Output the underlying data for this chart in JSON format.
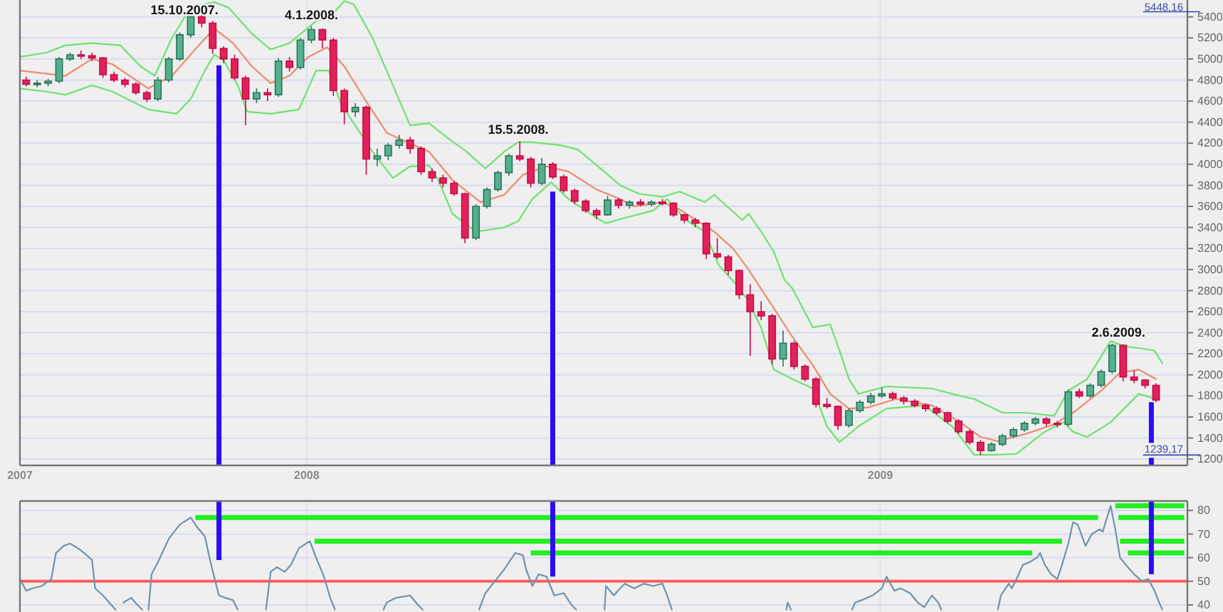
{
  "chart_data": [
    {
      "type": "candlestick",
      "x": [
        "2007-07-06",
        "2007-07-13",
        "2007-07-20",
        "2007-07-27",
        "2007-08-03",
        "2007-08-10",
        "2007-08-17",
        "2007-08-24",
        "2007-08-31",
        "2007-09-07",
        "2007-09-14",
        "2007-09-21",
        "2007-09-28",
        "2007-10-05",
        "2007-10-12",
        "2007-10-19",
        "2007-10-26",
        "2007-11-02",
        "2007-11-09",
        "2007-11-16",
        "2007-11-23",
        "2007-11-30",
        "2007-12-07",
        "2007-12-14",
        "2007-12-21",
        "2007-12-28",
        "2008-01-04",
        "2008-01-11",
        "2008-01-18",
        "2008-01-25",
        "2008-02-01",
        "2008-02-08",
        "2008-02-15",
        "2008-02-22",
        "2008-02-29",
        "2008-03-07",
        "2008-03-14",
        "2008-03-21",
        "2008-03-28",
        "2008-04-04",
        "2008-04-11",
        "2008-04-18",
        "2008-04-25",
        "2008-05-02",
        "2008-05-09",
        "2008-05-16",
        "2008-05-23",
        "2008-05-30",
        "2008-06-06",
        "2008-06-13",
        "2008-06-20",
        "2008-06-27",
        "2008-07-04",
        "2008-07-11",
        "2008-07-18",
        "2008-07-25",
        "2008-08-01",
        "2008-08-08",
        "2008-08-15",
        "2008-08-22",
        "2008-08-29",
        "2008-09-05",
        "2008-09-12",
        "2008-09-19",
        "2008-09-26",
        "2008-10-03",
        "2008-10-10",
        "2008-10-17",
        "2008-10-24",
        "2008-10-31",
        "2008-11-07",
        "2008-11-14",
        "2008-11-21",
        "2008-11-28",
        "2008-12-05",
        "2008-12-12",
        "2008-12-19",
        "2008-12-26",
        "2009-01-02",
        "2009-01-09",
        "2009-01-16",
        "2009-01-23",
        "2009-01-30",
        "2009-02-06",
        "2009-02-13",
        "2009-02-20",
        "2009-02-27",
        "2009-03-06",
        "2009-03-13",
        "2009-03-20",
        "2009-03-27",
        "2009-04-03",
        "2009-04-10",
        "2009-04-17",
        "2009-04-24",
        "2009-05-01",
        "2009-05-08",
        "2009-05-15",
        "2009-05-22",
        "2009-05-29",
        "2009-06-05",
        "2009-06-12",
        "2009-06-19",
        "2009-06-26"
      ],
      "ohlc": [
        [
          4800,
          4830,
          4740,
          4760
        ],
        [
          4760,
          4800,
          4730,
          4770
        ],
        [
          4770,
          4810,
          4740,
          4790
        ],
        [
          4790,
          5020,
          4770,
          5000
        ],
        [
          5000,
          5060,
          4980,
          5040
        ],
        [
          5040,
          5080,
          5000,
          5030
        ],
        [
          5030,
          5060,
          4980,
          5010
        ],
        [
          5010,
          5020,
          4820,
          4850
        ],
        [
          4850,
          4880,
          4780,
          4800
        ],
        [
          4800,
          4820,
          4730,
          4760
        ],
        [
          4760,
          4780,
          4660,
          4680
        ],
        [
          4680,
          4700,
          4590,
          4620
        ],
        [
          4620,
          4830,
          4600,
          4800
        ],
        [
          4800,
          5020,
          4780,
          5000
        ],
        [
          5000,
          5250,
          4980,
          5230
        ],
        [
          5230,
          5448.16,
          5200,
          5400
        ],
        [
          5400,
          5420,
          5300,
          5340
        ],
        [
          5340,
          5360,
          5050,
          5100
        ],
        [
          5100,
          5120,
          4960,
          5000
        ],
        [
          5000,
          5040,
          4800,
          4820
        ],
        [
          4820,
          4840,
          4370,
          4620
        ],
        [
          4620,
          4720,
          4580,
          4680
        ],
        [
          4680,
          4720,
          4600,
          4660
        ],
        [
          4660,
          5010,
          4640,
          4980
        ],
        [
          4980,
          5020,
          4880,
          4920
        ],
        [
          4920,
          5200,
          4900,
          5180
        ],
        [
          5180,
          5310,
          5150,
          5280
        ],
        [
          5280,
          5290,
          5100,
          5180
        ],
        [
          5180,
          5200,
          4650,
          4700
        ],
        [
          4700,
          4720,
          4380,
          4500
        ],
        [
          4500,
          4580,
          4450,
          4540
        ],
        [
          4540,
          4560,
          3900,
          4050
        ],
        [
          4050,
          4150,
          3980,
          4080
        ],
        [
          4080,
          4200,
          4040,
          4180
        ],
        [
          4180,
          4280,
          4150,
          4230
        ],
        [
          4230,
          4260,
          4100,
          4150
        ],
        [
          4150,
          4170,
          3900,
          3930
        ],
        [
          3930,
          3960,
          3830,
          3870
        ],
        [
          3870,
          3900,
          3780,
          3820
        ],
        [
          3820,
          3840,
          3700,
          3720
        ],
        [
          3720,
          3730,
          3250,
          3300
        ],
        [
          3300,
          3620,
          3280,
          3600
        ],
        [
          3600,
          3780,
          3580,
          3760
        ],
        [
          3760,
          3940,
          3740,
          3920
        ],
        [
          3920,
          4100,
          3890,
          4080
        ],
        [
          4080,
          4220,
          4030,
          4050
        ],
        [
          4050,
          4070,
          3780,
          3820
        ],
        [
          3820,
          4060,
          3800,
          4000
        ],
        [
          4000,
          4020,
          3860,
          3880
        ],
        [
          3880,
          3900,
          3730,
          3750
        ],
        [
          3750,
          3770,
          3620,
          3650
        ],
        [
          3650,
          3670,
          3540,
          3560
        ],
        [
          3560,
          3580,
          3480,
          3520
        ],
        [
          3520,
          3700,
          3510,
          3660
        ],
        [
          3660,
          3680,
          3580,
          3610
        ],
        [
          3610,
          3660,
          3580,
          3640
        ],
        [
          3640,
          3670,
          3600,
          3620
        ],
        [
          3620,
          3660,
          3600,
          3640
        ],
        [
          3640,
          3670,
          3610,
          3630
        ],
        [
          3630,
          3640,
          3500,
          3520
        ],
        [
          3520,
          3530,
          3440,
          3470
        ],
        [
          3470,
          3490,
          3400,
          3440
        ],
        [
          3440,
          3450,
          3100,
          3150
        ],
        [
          3150,
          3300,
          3100,
          3120
        ],
        [
          3120,
          3140,
          2950,
          2990
        ],
        [
          2990,
          3000,
          2720,
          2760
        ],
        [
          2760,
          2860,
          2180,
          2600
        ],
        [
          2600,
          2700,
          2520,
          2560
        ],
        [
          2560,
          2580,
          2100,
          2150
        ],
        [
          2150,
          2420,
          2080,
          2300
        ],
        [
          2300,
          2320,
          2050,
          2080
        ],
        [
          2080,
          2100,
          1940,
          1960
        ],
        [
          1960,
          1980,
          1690,
          1720
        ],
        [
          1720,
          1780,
          1680,
          1700
        ],
        [
          1700,
          1710,
          1480,
          1520
        ],
        [
          1520,
          1680,
          1500,
          1660
        ],
        [
          1660,
          1760,
          1640,
          1740
        ],
        [
          1740,
          1830,
          1720,
          1800
        ],
        [
          1800,
          1880,
          1780,
          1820
        ],
        [
          1820,
          1840,
          1760,
          1780
        ],
        [
          1780,
          1800,
          1720,
          1750
        ],
        [
          1750,
          1770,
          1690,
          1710
        ],
        [
          1710,
          1730,
          1650,
          1680
        ],
        [
          1680,
          1700,
          1620,
          1640
        ],
        [
          1640,
          1650,
          1540,
          1560
        ],
        [
          1560,
          1580,
          1440,
          1460
        ],
        [
          1460,
          1480,
          1340,
          1360
        ],
        [
          1360,
          1380,
          1239.17,
          1280
        ],
        [
          1280,
          1360,
          1270,
          1340
        ],
        [
          1340,
          1440,
          1320,
          1420
        ],
        [
          1420,
          1500,
          1400,
          1480
        ],
        [
          1480,
          1560,
          1460,
          1540
        ],
        [
          1540,
          1600,
          1520,
          1580
        ],
        [
          1580,
          1600,
          1510,
          1540
        ],
        [
          1540,
          1560,
          1500,
          1530
        ],
        [
          1530,
          1860,
          1510,
          1840
        ],
        [
          1840,
          1870,
          1780,
          1800
        ],
        [
          1800,
          1920,
          1780,
          1900
        ],
        [
          1900,
          2050,
          1880,
          2030
        ],
        [
          2030,
          2295,
          2010,
          2280
        ],
        [
          2280,
          2290,
          1940,
          1980
        ],
        [
          1980,
          2040,
          1920,
          1950
        ],
        [
          1950,
          1960,
          1870,
          1900
        ],
        [
          1900,
          1920,
          1740,
          1760
        ]
      ],
      "series": [
        {
          "type": "line",
          "color": "#6de36d",
          "x": [
            "2007-07-02",
            "2007-07-19",
            "2007-07-31",
            "2007-08-17",
            "2007-09-04",
            "2007-09-17",
            "2007-09-26",
            "2007-10-07",
            "2007-10-19",
            "2007-11-03",
            "2007-11-12",
            "2007-11-27",
            "2007-12-09",
            "2007-12-21",
            "2008-01-07",
            "2008-01-16",
            "2008-01-25",
            "2008-01-31",
            "2008-02-12",
            "2008-02-25",
            "2008-03-07",
            "2008-03-19",
            "2008-03-31",
            "2008-04-12",
            "2008-04-24",
            "2008-05-06",
            "2008-05-15",
            "2008-05-24",
            "2008-06-11",
            "2008-06-22",
            "2008-07-08",
            "2008-07-19",
            "2008-07-31",
            "2008-08-15",
            "2008-08-26",
            "2008-09-11",
            "2008-09-17",
            "2008-10-05",
            "2008-10-09",
            "2008-10-17",
            "2008-10-25",
            "2008-11-01",
            "2008-11-06",
            "2008-11-19",
            "2008-11-30",
            "2008-12-06",
            "2008-12-12",
            "2008-12-18",
            "2009-01-05",
            "2009-02-03",
            "2009-02-21",
            "2009-03-02",
            "2009-03-20",
            "2009-04-04",
            "2009-04-22",
            "2009-05-01",
            "2009-05-13",
            "2009-05-28",
            "2009-06-06",
            "2009-06-17",
            "2009-06-25",
            "2009-06-30"
          ],
          "values": [
            5020,
            5060,
            5130,
            5150,
            5130,
            4930,
            4840,
            5200,
            5490,
            5540,
            5490,
            5240,
            5090,
            5150,
            5360,
            5400,
            5550,
            5520,
            5200,
            4750,
            4370,
            4390,
            4250,
            4120,
            3960,
            4120,
            4210,
            4210,
            4180,
            4140,
            3940,
            3800,
            3720,
            3690,
            3740,
            3640,
            3710,
            3470,
            3530,
            3360,
            3170,
            2900,
            2820,
            2450,
            2480,
            2230,
            1960,
            1820,
            1890,
            1870,
            1800,
            1770,
            1640,
            1640,
            1610,
            1850,
            1960,
            2320,
            2270,
            2250,
            2230,
            2110
          ]
        },
        {
          "type": "line",
          "color": "#ee8a6c",
          "x": [
            "2007-07-02",
            "2007-07-31",
            "2007-08-17",
            "2007-08-30",
            "2007-09-22",
            "2007-10-07",
            "2007-10-23",
            "2007-11-03",
            "2007-11-15",
            "2007-11-27",
            "2007-12-09",
            "2007-12-21",
            "2008-01-02",
            "2008-01-14",
            "2008-01-25",
            "2008-02-07",
            "2008-02-21",
            "2008-03-05",
            "2008-03-19",
            "2008-04-03",
            "2008-04-21",
            "2008-05-06",
            "2008-05-18",
            "2008-06-02",
            "2008-06-16",
            "2008-07-04",
            "2008-07-19",
            "2008-07-28",
            "2008-08-15",
            "2008-08-26",
            "2008-09-17",
            "2008-09-29",
            "2008-10-08",
            "2008-10-23",
            "2008-11-06",
            "2008-11-19",
            "2008-11-30",
            "2008-12-12",
            "2008-12-24",
            "2009-01-11",
            "2009-02-03",
            "2009-02-21",
            "2009-03-06",
            "2009-03-17",
            "2009-04-04",
            "2009-04-22",
            "2009-05-04",
            "2009-05-22",
            "2009-06-03",
            "2009-06-15",
            "2009-06-26"
          ],
          "values": [
            4890,
            4840,
            5000,
            4950,
            4720,
            4840,
            5110,
            5290,
            5150,
            4930,
            4770,
            4840,
            5020,
            5110,
            4930,
            4620,
            4300,
            4210,
            4120,
            3850,
            3640,
            3710,
            3900,
            3980,
            3930,
            3760,
            3670,
            3600,
            3640,
            3570,
            3360,
            3200,
            3020,
            2680,
            2360,
            2090,
            1820,
            1680,
            1690,
            1770,
            1710,
            1550,
            1410,
            1370,
            1440,
            1530,
            1640,
            1850,
            2020,
            2050,
            1960
          ]
        },
        {
          "type": "line",
          "color": "#6de36d",
          "x": [
            "2007-07-02",
            "2007-07-19",
            "2007-07-31",
            "2007-08-17",
            "2007-08-30",
            "2007-09-22",
            "2007-10-10",
            "2007-10-19",
            "2007-10-28",
            "2007-11-03",
            "2007-11-09",
            "2007-11-18",
            "2007-11-24",
            "2007-12-09",
            "2007-12-27",
            "2008-01-07",
            "2008-01-15",
            "2008-01-23",
            "2008-01-31",
            "2008-02-12",
            "2008-02-25",
            "2008-03-07",
            "2008-03-19",
            "2008-03-25",
            "2008-04-03",
            "2008-04-18",
            "2008-05-06",
            "2008-05-15",
            "2008-05-24",
            "2008-06-05",
            "2008-06-16",
            "2008-07-04",
            "2008-07-10",
            "2008-07-22",
            "2008-08-09",
            "2008-08-18",
            "2008-08-30",
            "2008-09-11",
            "2008-09-20",
            "2008-10-01",
            "2008-10-08",
            "2008-10-17",
            "2008-10-25",
            "2008-11-06",
            "2008-11-19",
            "2008-11-28",
            "2008-12-06",
            "2008-12-18",
            "2009-01-05",
            "2009-01-29",
            "2009-02-16",
            "2009-03-02",
            "2009-03-15",
            "2009-03-29",
            "2009-04-16",
            "2009-04-28",
            "2009-05-04",
            "2009-05-13",
            "2009-05-28",
            "2009-06-15",
            "2009-06-26"
          ],
          "values": [
            4720,
            4690,
            4660,
            4750,
            4690,
            4520,
            4480,
            4620,
            4890,
            5040,
            4990,
            4750,
            4500,
            4480,
            4520,
            4890,
            4890,
            4570,
            4390,
            4120,
            3870,
            3980,
            3990,
            3850,
            3530,
            3360,
            3400,
            3460,
            3670,
            3830,
            3670,
            3490,
            3440,
            3490,
            3560,
            3670,
            3470,
            3360,
            3040,
            2860,
            2720,
            2450,
            2050,
            1960,
            1870,
            1510,
            1360,
            1510,
            1680,
            1710,
            1510,
            1240,
            1240,
            1250,
            1460,
            1550,
            1460,
            1410,
            1550,
            1820,
            1770
          ]
        },
        {
          "type": "line",
          "color": "#2a0cf5",
          "x": [
            "2007-11-06",
            "2007-11-06"
          ],
          "values": [
            4940,
            1140
          ]
        },
        {
          "type": "line",
          "color": "#2a0cf5",
          "x": [
            "2008-06-06",
            "2008-06-06"
          ],
          "values": [
            3740,
            1140
          ]
        },
        {
          "type": "line",
          "color": "#2a0cf5",
          "x": [
            "2009-06-23",
            "2009-06-23"
          ],
          "values": [
            1740,
            1140
          ]
        }
      ],
      "xlim": [
        "2007-07-02",
        "2009-07-16"
      ],
      "xticks": [
        {
          "value": "2007-07-02",
          "label": "2007"
        },
        {
          "value": "2008-01-01",
          "label": "2008"
        },
        {
          "value": "2009-01-01",
          "label": "2009"
        }
      ],
      "ylim": [
        1140,
        5560
      ],
      "yticks": [
        1200,
        1400,
        1600,
        1800,
        2000,
        2200,
        2400,
        2600,
        2800,
        3000,
        3200,
        3400,
        3600,
        3800,
        4000,
        4200,
        4400,
        4600,
        4800,
        5000,
        5200,
        5400
      ],
      "grid": true,
      "annotations": [
        {
          "text": "15.10.2007.",
          "x": "2007-10-15",
          "y": 5448.16
        },
        {
          "text": "4.1.2008.",
          "x": "2008-01-04",
          "y": 5310
        },
        {
          "text": "15.5.2008.",
          "x": "2008-05-15",
          "y": 4220
        },
        {
          "text": "2.6.2009.",
          "x": "2009-06-02",
          "y": 2295
        },
        "5448,16",
        "1239,17"
      ]
    },
    {
      "type": "line",
      "series": [
        {
          "color": "#6f93ab",
          "x": [
            "2007-07-02",
            "2007-07-06",
            "2007-07-10",
            "2007-07-16",
            "2007-07-22",
            "2007-07-25",
            "2007-07-30",
            "2007-08-03",
            "2007-08-08",
            "2007-08-12",
            "2007-08-17",
            "2007-08-19",
            "2007-08-24",
            "2007-08-28",
            "2007-09-01",
            "2007-09-04",
            "2007-09-06",
            "2007-09-11",
            "2007-09-15",
            "2007-09-18",
            "2007-09-20",
            "2007-09-22",
            "2007-09-24",
            "2007-09-28",
            "2007-10-05",
            "2007-10-12",
            "2007-10-19",
            "2007-10-23",
            "2007-10-28",
            "2007-11-01",
            "2007-11-06",
            "2007-11-10",
            "2007-11-15",
            "2007-11-18",
            "2007-11-28",
            "2007-12-06",
            "2007-12-09",
            "2007-12-13",
            "2007-12-18",
            "2007-12-22",
            "2007-12-27",
            "2008-01-03",
            "2008-01-07",
            "2008-01-12",
            "2008-01-16",
            "2008-01-19",
            "2008-02-05",
            "2008-02-19",
            "2008-02-21",
            "2008-02-27",
            "2008-03-07",
            "2008-03-12",
            "2008-03-15",
            "2008-04-01",
            "2008-04-20",
            "2008-04-24",
            "2008-04-30",
            "2008-05-06",
            "2008-05-13",
            "2008-05-18",
            "2008-05-20",
            "2008-05-24",
            "2008-05-28",
            "2008-06-02",
            "2008-06-07",
            "2008-06-13",
            "2008-06-18",
            "2008-06-21",
            "2008-07-01",
            "2008-07-09",
            "2008-07-10",
            "2008-07-15",
            "2008-07-19",
            "2008-07-22",
            "2008-07-28",
            "2008-08-03",
            "2008-08-09",
            "2008-08-15",
            "2008-08-18",
            "2008-08-21",
            "2008-09-30",
            "2008-11-02",
            "2008-11-03",
            "2008-11-05",
            "2008-11-20",
            "2008-12-14",
            "2008-12-16",
            "2008-12-20",
            "2008-12-27",
            "2009-01-02",
            "2009-01-05",
            "2009-01-10",
            "2009-01-14",
            "2009-01-20",
            "2009-01-25",
            "2009-01-29",
            "2009-02-03",
            "2009-02-07",
            "2009-02-09",
            "2009-03-01",
            "2009-03-17",
            "2009-03-19",
            "2009-03-24",
            "2009-03-26",
            "2009-03-29",
            "2009-04-02",
            "2009-04-06",
            "2009-04-11",
            "2009-04-13",
            "2009-04-16",
            "2009-04-20",
            "2009-04-24",
            "2009-04-27",
            "2009-05-01",
            "2009-05-04",
            "2009-05-07",
            "2009-05-12",
            "2009-05-16",
            "2009-05-21",
            "2009-05-23",
            "2009-05-28",
            "2009-05-31",
            "2009-06-03",
            "2009-06-08",
            "2009-06-12",
            "2009-06-17",
            "2009-06-21",
            "2009-06-25",
            "2009-06-28",
            "2009-06-30"
          ],
          "values": [
            51,
            46,
            47,
            48,
            51,
            62,
            65,
            66,
            64,
            62,
            59,
            47,
            44,
            41,
            38,
            null,
            41,
            43,
            40,
            38,
            null,
            38,
            53,
            58,
            68,
            74,
            77,
            73,
            69,
            57,
            44,
            43,
            42,
            38,
            null,
            38,
            54,
            56,
            54,
            57,
            64,
            67,
            60,
            52,
            43,
            38,
            null,
            38,
            41,
            43,
            44,
            40,
            38,
            null,
            38,
            45,
            50,
            55,
            62,
            61,
            55,
            48,
            53,
            52,
            44,
            45,
            40,
            38,
            null,
            38,
            48,
            44,
            47,
            49,
            47,
            49,
            48,
            49,
            44,
            38,
            null,
            38,
            41,
            38,
            null,
            38,
            41,
            42,
            44,
            47,
            52,
            46,
            47,
            45,
            41,
            39,
            44,
            41,
            38,
            null,
            38,
            44,
            49,
            47,
            51,
            57,
            58,
            60,
            62,
            57,
            53,
            51,
            57,
            66,
            75,
            74,
            65,
            70,
            72,
            71,
            82,
            72,
            60,
            56,
            53,
            50,
            51,
            46,
            41,
            38
          ]
        },
        {
          "color": "#22ee22",
          "x": [
            "2007-10-22",
            "2009-05-20"
          ],
          "values": [
            77,
            77
          ]
        },
        {
          "color": "#22ee22",
          "x": [
            "2009-06-02",
            "2009-07-14"
          ],
          "values": [
            77,
            77
          ]
        },
        {
          "color": "#22ee22",
          "x": [
            "2008-01-06",
            "2009-04-27"
          ],
          "values": [
            67,
            67
          ]
        },
        {
          "color": "#22ee22",
          "x": [
            "2009-06-03",
            "2009-07-14"
          ],
          "values": [
            67,
            67
          ]
        },
        {
          "color": "#22ee22",
          "x": [
            "2008-05-23",
            "2009-04-08"
          ],
          "values": [
            62,
            62
          ]
        },
        {
          "color": "#22ee22",
          "x": [
            "2009-06-08",
            "2009-07-14"
          ],
          "values": [
            62,
            62
          ]
        },
        {
          "color": "#22ee22",
          "x": [
            "2009-05-31",
            "2009-07-14"
          ],
          "values": [
            82,
            82
          ]
        },
        {
          "color": "#2a0cf5",
          "x": [
            "2007-11-06",
            "2007-11-06"
          ],
          "values": [
            84,
            59
          ]
        },
        {
          "color": "#2a0cf5",
          "x": [
            "2008-06-06",
            "2008-06-06"
          ],
          "values": [
            84,
            52
          ]
        },
        {
          "color": "#2a0cf5",
          "x": [
            "2009-06-23",
            "2009-06-23"
          ],
          "values": [
            84,
            53
          ]
        }
      ],
      "xlim": [
        "2007-07-02",
        "2009-07-16"
      ],
      "xticks": [
        {
          "value": "2008-01-01",
          "label": null
        },
        {
          "value": "2009-01-01",
          "label": null
        }
      ],
      "ylim": [
        37,
        84
      ],
      "yticks": [
        40,
        50,
        60,
        70,
        80
      ],
      "grid": true,
      "tick_labels": "y",
      "ref_lines": [
        {
          "axis": "y",
          "value": 50,
          "color": "#ff5c5c"
        }
      ]
    }
  ]
}
